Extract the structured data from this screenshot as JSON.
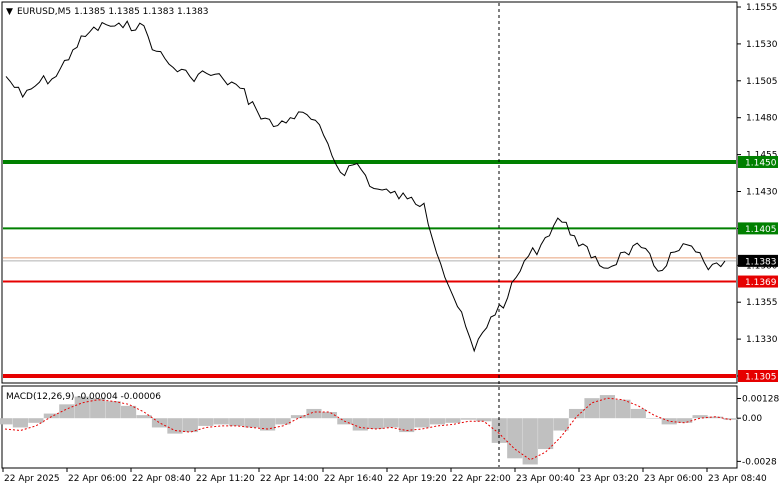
{
  "header": {
    "symbol_line": "EURUSD,M5  1.1385 1.1385 1.1383 1.1383"
  },
  "macd_label": "MACD(12,26,9) -0.00004 -0.00006",
  "colors": {
    "price": "#000000",
    "support": "#e60000",
    "resistance": "#008000",
    "bid": "#000000",
    "ask": "#e8a07a",
    "hist": "#c0c0c0",
    "signal": "#e60000"
  },
  "chart_data": {
    "type": "line",
    "series": [
      {
        "x": [
          "22 Apr 2025 00:00",
          "22 Apr 2025 01:00",
          "22 Apr 2025 02:00",
          "22 Apr 2025 03:00",
          "22 Apr 2025 04:00",
          "22 Apr 2025 05:00",
          "22 Apr 2025 06:00",
          "22 Apr 2025 07:00",
          "22 Apr 2025 08:00",
          "22 Apr 2025 08:40",
          "22 Apr 2025 09:40",
          "22 Apr 2025 10:40",
          "22 Apr 2025 11:20",
          "22 Apr 2025 12:20",
          "22 Apr 2025 13:20",
          "22 Apr 2025 14:00",
          "22 Apr 2025 15:00",
          "22 Apr 2025 16:00",
          "22 Apr 2025 16:40",
          "22 Apr 2025 17:40",
          "22 Apr 2025 18:40",
          "22 Apr 2025 19:20",
          "22 Apr 2025 20:20",
          "22 Apr 2025 21:20",
          "22 Apr 2025 22:00",
          "22 Apr 2025 22:20",
          "22 Apr 2025 23:00",
          "22 Apr 2025 23:40",
          "23 Apr 2025 00:00",
          "23 Apr 2025 00:20",
          "23 Apr 2025 00:40",
          "23 Apr 2025 01:20",
          "23 Apr 2025 02:00",
          "23 Apr 2025 02:40",
          "23 Apr 2025 03:20",
          "23 Apr 2025 04:00",
          "23 Apr 2025 04:40",
          "23 Apr 2025 05:20",
          "23 Apr 2025 06:00",
          "23 Apr 2025 06:40",
          "23 Apr 2025 07:20",
          "23 Apr 2025 08:00",
          "23 Apr 2025 08:20",
          "23 Apr 2025 08:40"
        ],
        "values": [
          1.1508,
          1.1494,
          1.1504,
          1.1508,
          1.1526,
          1.1538,
          1.1543,
          1.1541,
          1.1544,
          1.1525,
          1.1514,
          1.1508,
          1.151,
          1.1506,
          1.15,
          1.1485,
          1.1474,
          1.148,
          1.1482,
          1.1468,
          1.1443,
          1.1449,
          1.1432,
          1.1429,
          1.1425,
          1.1422,
          1.1381,
          1.1352,
          1.1322,
          1.1345,
          1.1358,
          1.1383,
          1.1394,
          1.1412,
          1.14,
          1.1385,
          1.1378,
          1.1389,
          1.1392,
          1.1376,
          1.1389,
          1.1393,
          1.1377,
          1.1383
        ]
      }
    ],
    "y_axis": {
      "min": 1.1305,
      "max": 1.1555,
      "ticks": [
        "1.1555",
        "1.1530",
        "1.1505",
        "1.1480",
        "1.1455",
        "1.1430",
        "1.1405",
        "1.1380",
        "1.1355",
        "1.1330",
        "1.1305"
      ]
    },
    "x_ticks": [
      "22 Apr 2025",
      "22 Apr 06:00",
      "22 Apr 08:40",
      "22 Apr 11:20",
      "22 Apr 14:00",
      "22 Apr 16:40",
      "22 Apr 19:20",
      "22 Apr 22:00",
      "23 Apr 00:40",
      "23 Apr 03:20",
      "23 Apr 06:00",
      "23 Apr 08:40"
    ],
    "levels": [
      {
        "value": 1.145,
        "label": "1.1450",
        "kind": "resistance",
        "thick": true
      },
      {
        "value": 1.1405,
        "label": "1.1405",
        "kind": "resistance",
        "thick": false
      },
      {
        "value": 1.1369,
        "label": "1.1369",
        "kind": "support",
        "thick": false
      },
      {
        "value": 1.1305,
        "label": "1.1305",
        "kind": "support",
        "thick": true
      }
    ],
    "bid": {
      "value": 1.1383,
      "label": "1.1383"
    },
    "ask_value": 1.1385,
    "macd": {
      "ticks": [
        "0.00128",
        "0.00",
        "-0.0028"
      ],
      "tick_values": [
        0.00128,
        0.0,
        -0.0028
      ],
      "range": [
        -0.0031,
        0.0017
      ],
      "hist": [
        -0.0004,
        -0.0006,
        -0.0003,
        0.0003,
        0.0009,
        0.0014,
        0.0013,
        0.0011,
        0.0008,
        0.0002,
        -0.0006,
        -0.001,
        -0.0009,
        -0.0005,
        -0.0004,
        -0.0005,
        -0.0006,
        -0.0008,
        -0.0004,
        0.0002,
        0.0006,
        0.0004,
        -0.0004,
        -0.0008,
        -0.0007,
        -0.0006,
        -0.0009,
        -0.0006,
        -0.0004,
        -0.0003,
        -0.0001,
        -0.0002,
        -0.0016,
        -0.0026,
        -0.003,
        -0.002,
        -0.0008,
        0.0006,
        0.0013,
        0.0015,
        0.0012,
        0.0006,
        0.0,
        -0.0004,
        -0.0003,
        0.0002,
        0.0001,
        -0.0001
      ],
      "signal": [
        -0.0007,
        -0.0008,
        -0.0005,
        0.0001,
        0.0006,
        0.001,
        0.0012,
        0.0011,
        0.0009,
        0.0004,
        -0.0003,
        -0.0008,
        -0.0009,
        -0.0006,
        -0.0005,
        -0.0005,
        -0.0006,
        -0.0007,
        -0.0005,
        0.0,
        0.0004,
        0.0004,
        -0.0002,
        -0.0006,
        -0.0007,
        -0.0006,
        -0.0008,
        -0.0007,
        -0.0005,
        -0.0004,
        -0.0002,
        -0.0002,
        -0.001,
        -0.002,
        -0.0027,
        -0.0022,
        -0.0012,
        0.0001,
        0.001,
        0.0013,
        0.0012,
        0.0008,
        0.0002,
        -0.0002,
        -0.0003,
        0.0,
        0.0001,
        -0.0001
      ]
    }
  }
}
